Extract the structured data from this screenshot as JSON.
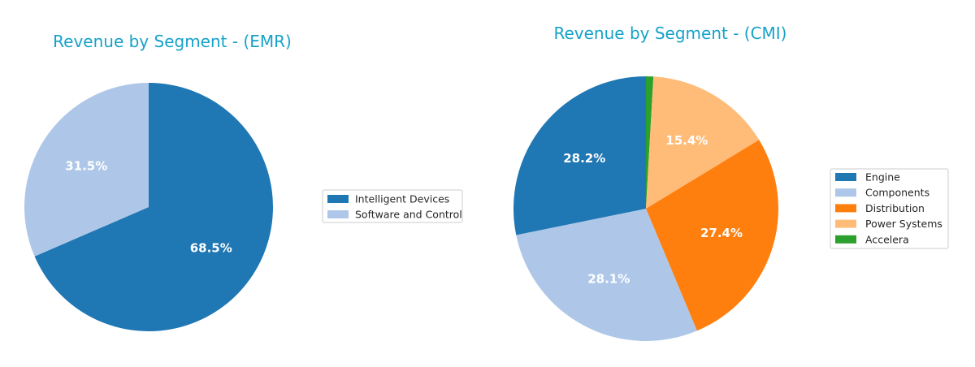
{
  "chart_data": [
    {
      "type": "pie",
      "title": "Revenue by Segment - (EMR)",
      "title_color": "#17a2c8",
      "legend_position": "right",
      "start_angle_deg": 90,
      "direction": "clockwise",
      "slices": [
        {
          "label": "Intelligent Devices",
          "value": 68.5,
          "pct_label": "68.5%",
          "color": "#1f77b4"
        },
        {
          "label": "Software and Control",
          "value": 31.5,
          "pct_label": "31.5%",
          "color": "#aec7e8"
        }
      ]
    },
    {
      "type": "pie",
      "title": "Revenue by Segment - (CMI)",
      "title_color": "#17a2c8",
      "legend_position": "right",
      "start_angle_deg": 90,
      "direction": "clockwise",
      "slices": [
        {
          "label": "Accelera",
          "value": 0.9,
          "pct_label": "",
          "color": "#2ca02c"
        },
        {
          "label": "Power Systems",
          "value": 15.4,
          "pct_label": "15.4%",
          "color": "#ffbb78"
        },
        {
          "label": "Distribution",
          "value": 27.4,
          "pct_label": "27.4%",
          "color": "#ff7f0e"
        },
        {
          "label": "Components",
          "value": 28.1,
          "pct_label": "28.1%",
          "color": "#aec7e8"
        },
        {
          "label": "Engine",
          "value": 28.2,
          "pct_label": "28.2%",
          "color": "#1f77b4"
        }
      ],
      "legend_order": [
        "Engine",
        "Components",
        "Distribution",
        "Power Systems",
        "Accelera"
      ]
    }
  ]
}
